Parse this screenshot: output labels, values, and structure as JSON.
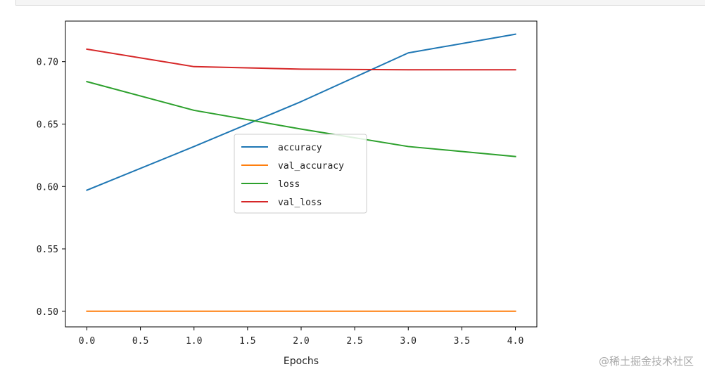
{
  "chart_data": {
    "type": "line",
    "xlabel": "Epochs",
    "ylabel": "",
    "title": "",
    "xlim": [
      -0.2,
      4.2
    ],
    "ylim": [
      0.4875,
      0.7325
    ],
    "xticks": [
      0.0,
      0.5,
      1.0,
      1.5,
      2.0,
      2.5,
      3.0,
      3.5,
      4.0
    ],
    "xtick_labels": [
      "0.0",
      "0.5",
      "1.0",
      "1.5",
      "2.0",
      "2.5",
      "3.0",
      "3.5",
      "4.0"
    ],
    "yticks": [
      0.5,
      0.55,
      0.6,
      0.65,
      0.7
    ],
    "ytick_labels": [
      "0.50",
      "0.55",
      "0.60",
      "0.65",
      "0.70"
    ],
    "grid": false,
    "legend_position": "center",
    "x": [
      0,
      1,
      2,
      3,
      4
    ],
    "series": [
      {
        "name": "accuracy",
        "color": "#1f77b4",
        "values": [
          0.597,
          0.632,
          0.668,
          0.707,
          0.722
        ]
      },
      {
        "name": "val_accuracy",
        "color": "#ff7f0e",
        "values": [
          0.5,
          0.5,
          0.5,
          0.5,
          0.5
        ]
      },
      {
        "name": "loss",
        "color": "#2ca02c",
        "values": [
          0.684,
          0.661,
          0.646,
          0.632,
          0.624
        ]
      },
      {
        "name": "val_loss",
        "color": "#d62728",
        "values": [
          0.71,
          0.696,
          0.694,
          0.6935,
          0.6935
        ]
      }
    ]
  },
  "watermark": "@稀土掘金技术社区"
}
